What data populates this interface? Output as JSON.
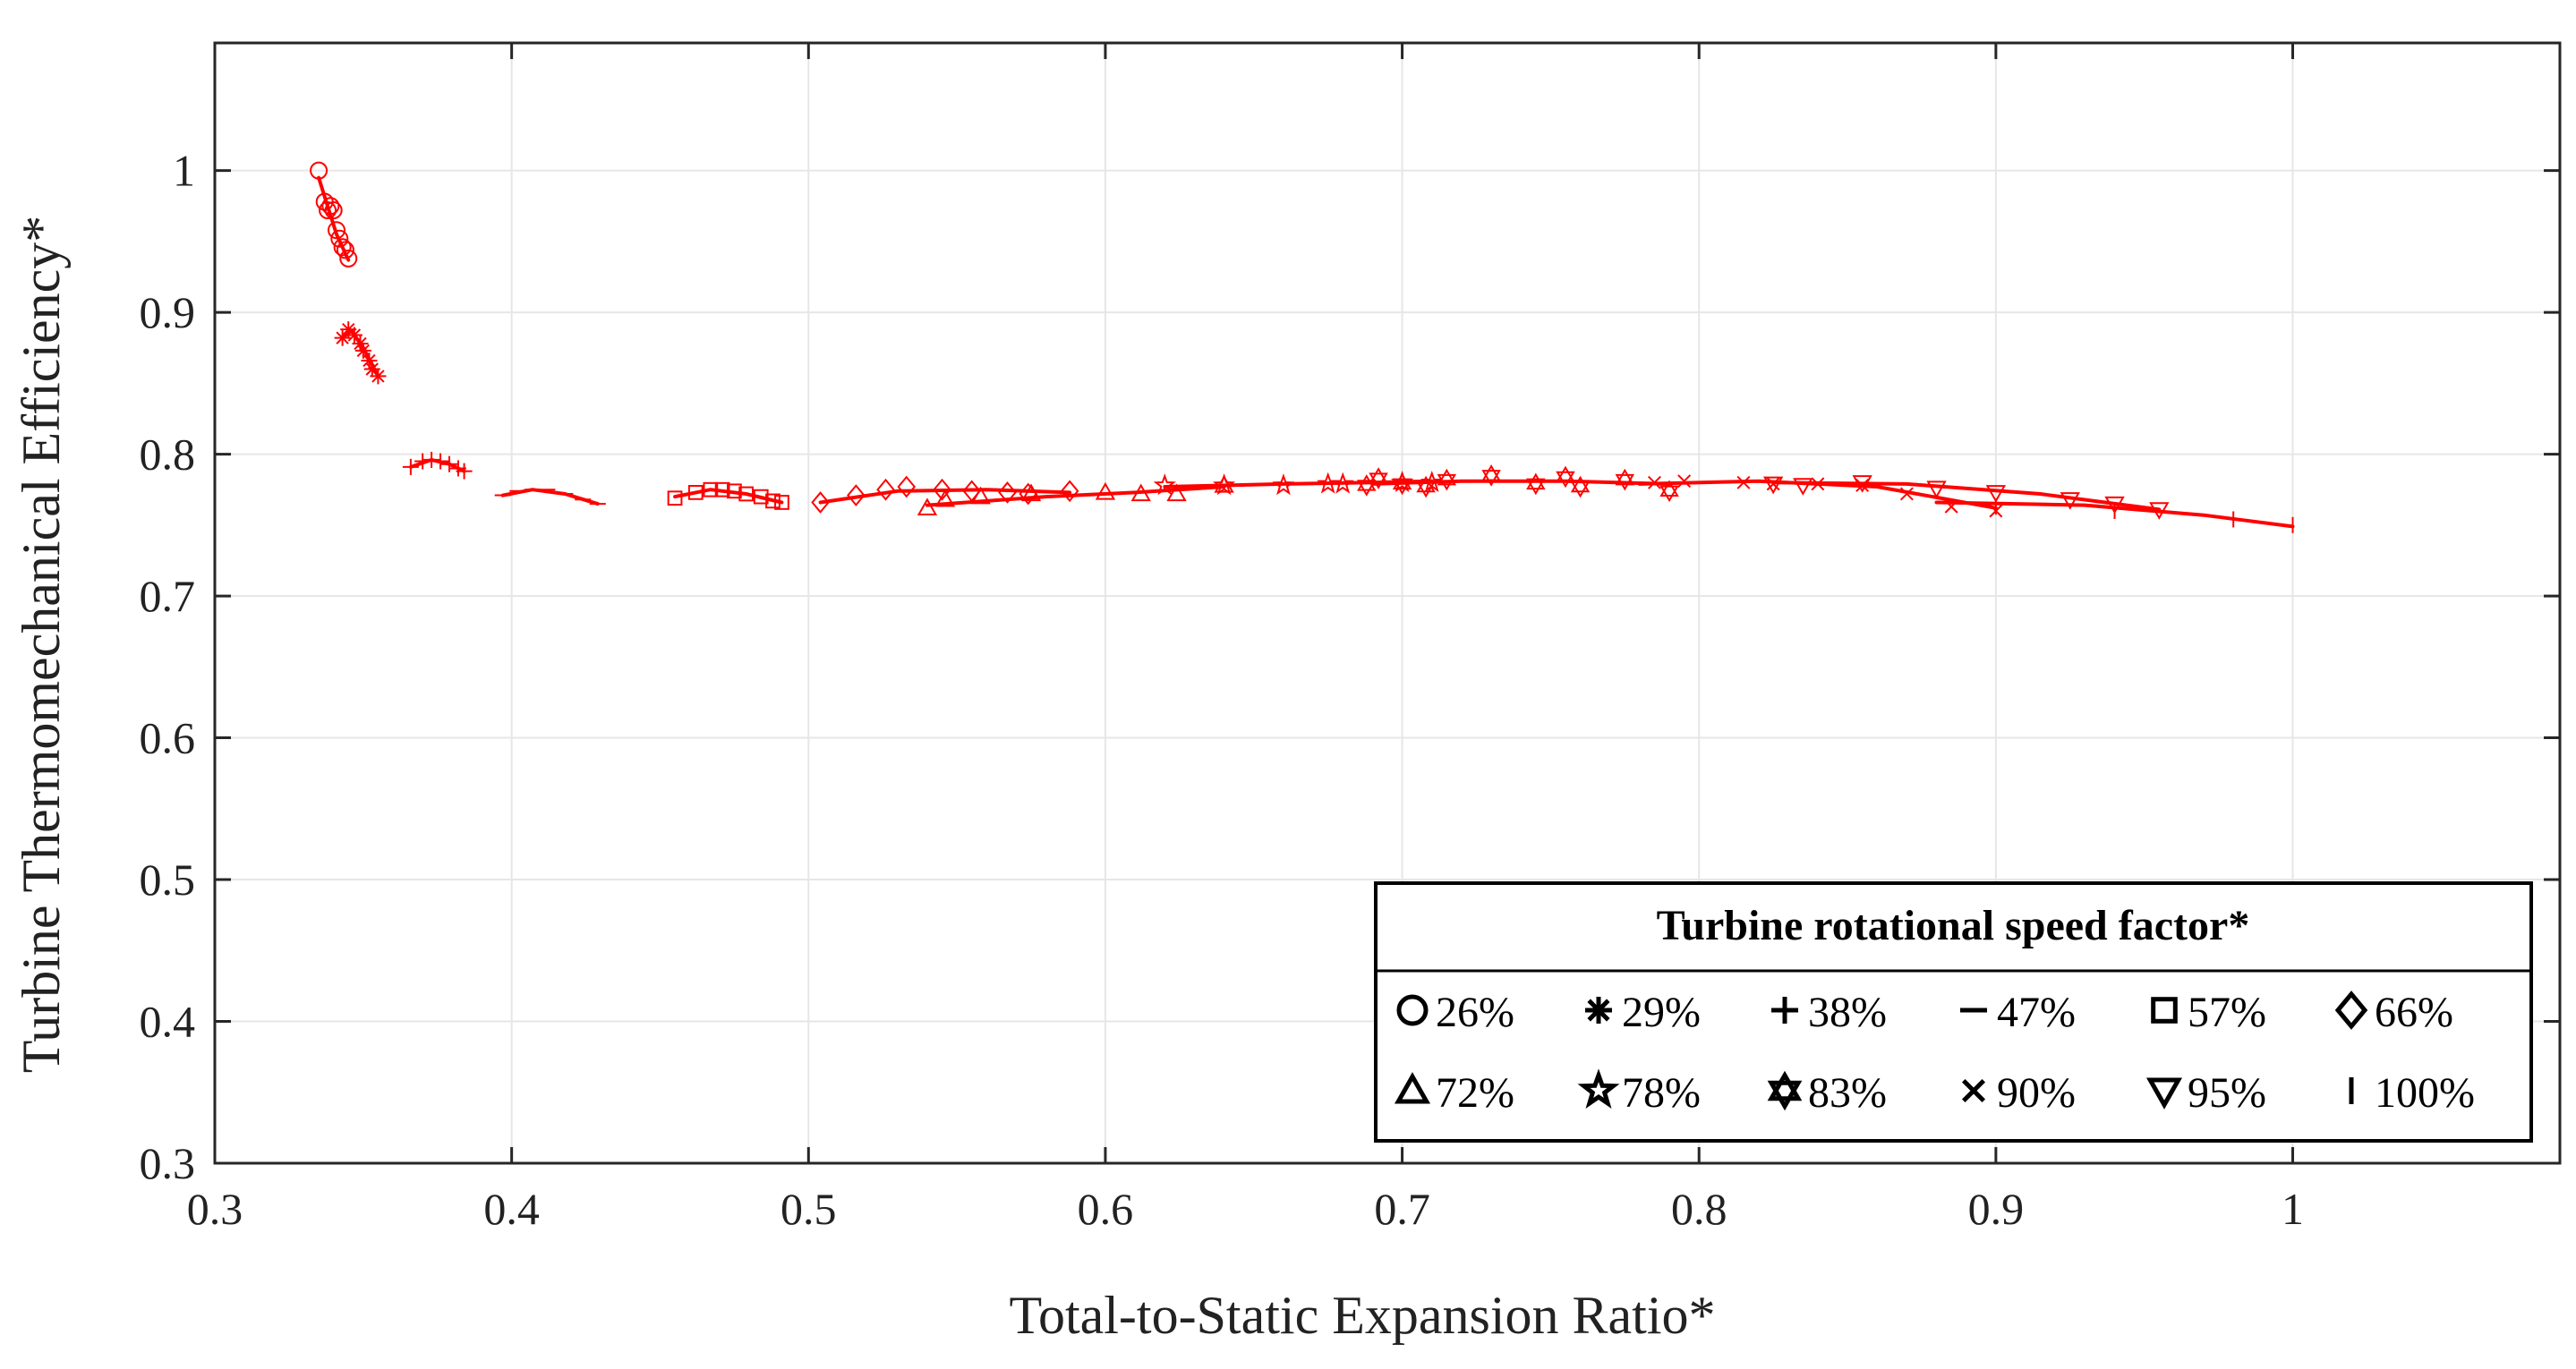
{
  "chart_data": {
    "type": "scatter",
    "title": "",
    "xlabel": "Total-to-Static Expansion Ratio*",
    "ylabel": "Turbine Thermomechanical Efficiency*",
    "xlim": [
      0.3,
      1.09
    ],
    "ylim": [
      0.3,
      1.09
    ],
    "xticks": [
      0.3,
      0.4,
      0.5,
      0.6,
      0.7,
      0.8,
      0.9,
      1.0
    ],
    "xtick_labels": [
      "0.3",
      "0.4",
      "0.5",
      "0.6",
      "0.7",
      "0.8",
      "0.9",
      "1"
    ],
    "yticks": [
      0.3,
      0.4,
      0.5,
      0.6,
      0.7,
      0.8,
      0.9,
      1.0
    ],
    "ytick_labels": [
      "0.3",
      "0.4",
      "0.5",
      "0.6",
      "0.7",
      "0.8",
      "0.9",
      "1"
    ],
    "grid": true,
    "series_color": "#ff0000",
    "legend": {
      "title": "Turbine rotational speed factor*",
      "placement": "bottom-right",
      "items": [
        "26%",
        "29%",
        "38%",
        "47%",
        "57%",
        "66%",
        "72%",
        "78%",
        "83%",
        "90%",
        "95%",
        "100%"
      ]
    },
    "series": [
      {
        "name": "26%",
        "marker": "circle",
        "x": [
          0.335,
          0.337,
          0.338,
          0.339,
          0.34,
          0.341,
          0.342,
          0.343,
          0.344,
          0.345
        ],
        "y": [
          1.0,
          0.978,
          0.972,
          0.975,
          0.972,
          0.958,
          0.952,
          0.946,
          0.944,
          0.938
        ]
      },
      {
        "name": "29%",
        "marker": "asterisk",
        "x": [
          0.343,
          0.345,
          0.347,
          0.349,
          0.35,
          0.352,
          0.353,
          0.355
        ],
        "y": [
          0.882,
          0.888,
          0.884,
          0.878,
          0.873,
          0.866,
          0.86,
          0.855
        ]
      },
      {
        "name": "38%",
        "marker": "plus",
        "x": [
          0.366,
          0.37,
          0.373,
          0.376,
          0.379,
          0.382,
          0.384
        ],
        "y": [
          0.791,
          0.795,
          0.796,
          0.795,
          0.793,
          0.79,
          0.788
        ]
      },
      {
        "name": "47%",
        "marker": "dash",
        "x": [
          0.397,
          0.402,
          0.407,
          0.412,
          0.418,
          0.424,
          0.429
        ],
        "y": [
          0.771,
          0.774,
          0.775,
          0.775,
          0.772,
          0.768,
          0.765
        ]
      },
      {
        "name": "57%",
        "marker": "square",
        "x": [
          0.455,
          0.462,
          0.467,
          0.471,
          0.475,
          0.479,
          0.484,
          0.488,
          0.491
        ],
        "y": [
          0.769,
          0.773,
          0.775,
          0.775,
          0.774,
          0.772,
          0.77,
          0.767,
          0.766
        ]
      },
      {
        "name": "66%",
        "marker": "diamond",
        "x": [
          0.504,
          0.516,
          0.526,
          0.533,
          0.545,
          0.555,
          0.567,
          0.574,
          0.588
        ],
        "y": [
          0.766,
          0.771,
          0.775,
          0.777,
          0.775,
          0.774,
          0.773,
          0.772,
          0.774
        ]
      },
      {
        "name": "72%",
        "marker": "triangle-up",
        "x": [
          0.54,
          0.546,
          0.558,
          0.575,
          0.6,
          0.612,
          0.624,
          0.64
        ],
        "y": [
          0.762,
          0.768,
          0.77,
          0.772,
          0.773,
          0.772,
          0.772,
          0.778
        ]
      },
      {
        "name": "78%",
        "marker": "star",
        "x": [
          0.62,
          0.64,
          0.66,
          0.675,
          0.68,
          0.7,
          0.71
        ],
        "y": [
          0.778,
          0.778,
          0.778,
          0.779,
          0.779,
          0.78,
          0.78
        ]
      },
      {
        "name": "83%",
        "marker": "hexagram",
        "x": [
          0.688,
          0.692,
          0.7,
          0.708,
          0.715,
          0.73,
          0.745,
          0.755,
          0.76,
          0.775,
          0.79
        ],
        "y": [
          0.778,
          0.783,
          0.779,
          0.777,
          0.782,
          0.785,
          0.779,
          0.784,
          0.777,
          0.782,
          0.774
        ]
      },
      {
        "name": "90%",
        "marker": "x",
        "x": [
          0.785,
          0.795,
          0.815,
          0.825,
          0.84,
          0.855,
          0.87,
          0.885,
          0.9
        ],
        "y": [
          0.78,
          0.781,
          0.78,
          0.779,
          0.779,
          0.778,
          0.772,
          0.763,
          0.76
        ]
      },
      {
        "name": "95%",
        "marker": "triangle-down",
        "x": [
          0.825,
          0.835,
          0.855,
          0.88,
          0.9,
          0.925,
          0.94,
          0.955
        ],
        "y": [
          0.779,
          0.778,
          0.78,
          0.776,
          0.773,
          0.768,
          0.765,
          0.761
        ]
      },
      {
        "name": "100%",
        "marker": "vline",
        "x": [
          0.9,
          0.94,
          0.98,
          1.0
        ],
        "y": [
          0.763,
          0.76,
          0.754,
          0.75
        ]
      }
    ],
    "fit_lines": [
      {
        "name": "26%",
        "x": [
          0.335,
          0.338,
          0.341,
          0.345
        ],
        "y": [
          0.995,
          0.975,
          0.955,
          0.937
        ]
      },
      {
        "name": "29%",
        "x": [
          0.343,
          0.346,
          0.35,
          0.355
        ],
        "y": [
          0.882,
          0.887,
          0.875,
          0.855
        ]
      },
      {
        "name": "38%",
        "x": [
          0.366,
          0.373,
          0.379,
          0.384
        ],
        "y": [
          0.791,
          0.796,
          0.793,
          0.788
        ]
      },
      {
        "name": "47%",
        "x": [
          0.397,
          0.407,
          0.418,
          0.429
        ],
        "y": [
          0.771,
          0.775,
          0.772,
          0.765
        ]
      },
      {
        "name": "57%",
        "x": [
          0.455,
          0.467,
          0.479,
          0.491
        ],
        "y": [
          0.77,
          0.775,
          0.772,
          0.766
        ]
      },
      {
        "name": "66%",
        "x": [
          0.504,
          0.53,
          0.56,
          0.588
        ],
        "y": [
          0.766,
          0.774,
          0.775,
          0.773
        ]
      },
      {
        "name": "72%",
        "x": [
          0.54,
          0.58,
          0.61,
          0.64
        ],
        "y": [
          0.764,
          0.77,
          0.773,
          0.777
        ]
      },
      {
        "name": "78%",
        "x": [
          0.62,
          0.66,
          0.69,
          0.71
        ],
        "y": [
          0.777,
          0.779,
          0.78,
          0.781
        ]
      },
      {
        "name": "83%",
        "x": [
          0.69,
          0.72,
          0.755,
          0.79
        ],
        "y": [
          0.779,
          0.781,
          0.781,
          0.779
        ]
      },
      {
        "name": "90%",
        "x": [
          0.78,
          0.82,
          0.86,
          0.9
        ],
        "y": [
          0.779,
          0.781,
          0.777,
          0.762
        ]
      },
      {
        "name": "95%",
        "x": [
          0.825,
          0.87,
          0.915,
          0.955
        ],
        "y": [
          0.78,
          0.779,
          0.772,
          0.761
        ]
      },
      {
        "name": "100%",
        "x": [
          0.88,
          0.93,
          0.97,
          1.0
        ],
        "y": [
          0.766,
          0.764,
          0.757,
          0.749
        ]
      }
    ]
  }
}
